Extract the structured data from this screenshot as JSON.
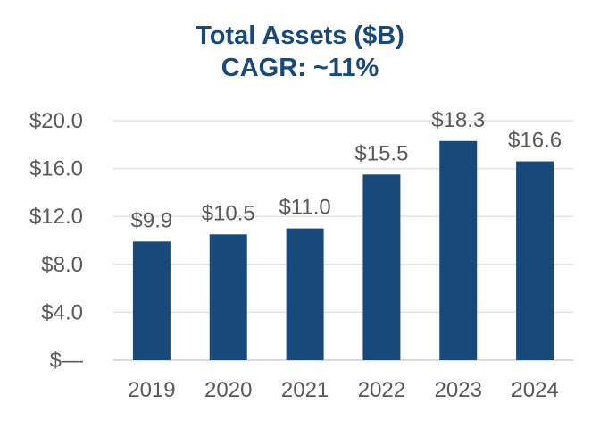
{
  "chart_data": {
    "type": "bar",
    "title": "Total Assets ($B)",
    "subtitle": "CAGR: ~11%",
    "categories": [
      "2019",
      "2020",
      "2021",
      "2022",
      "2023",
      "2024"
    ],
    "values": [
      9.9,
      10.5,
      11.0,
      15.5,
      18.3,
      16.6
    ],
    "data_labels": [
      "$9.9",
      "$10.5",
      "$11.0",
      "$15.5",
      "$18.3",
      "$16.6"
    ],
    "y_ticks": [
      0,
      4,
      8,
      12,
      16,
      20
    ],
    "y_tick_labels": [
      "$—",
      "$4.0",
      "$8.0",
      "$12.0",
      "$16.0",
      "$20.0"
    ],
    "ylim": [
      0,
      20
    ],
    "xlabel": "",
    "ylabel": "",
    "grid": true,
    "bar_color": "#17497a",
    "title_color": "#17497a"
  }
}
